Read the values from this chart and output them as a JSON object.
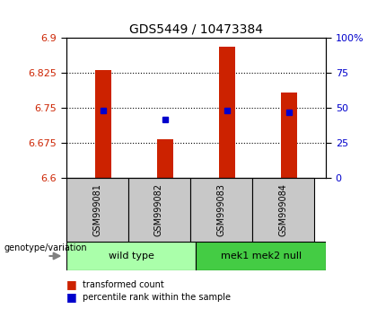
{
  "title": "GDS5449 / 10473384",
  "samples": [
    "GSM999081",
    "GSM999082",
    "GSM999083",
    "GSM999084"
  ],
  "transformed_counts": [
    6.831,
    6.683,
    6.882,
    6.783
  ],
  "percentile_ranks": [
    48,
    42,
    48,
    47
  ],
  "ylim_left": [
    6.6,
    6.9
  ],
  "ylim_right": [
    0,
    100
  ],
  "yticks_left": [
    6.6,
    6.675,
    6.75,
    6.825,
    6.9
  ],
  "yticks_right": [
    0,
    25,
    50,
    75,
    100
  ],
  "grid_yticks": [
    6.675,
    6.75,
    6.825
  ],
  "bar_color": "#CC2200",
  "dot_color": "#0000CC",
  "baseline": 6.6,
  "bg_color": "#FFFFFF",
  "plot_bg": "#FFFFFF",
  "sample_bg": "#C8C8C8",
  "group1_color": "#AAFFAA",
  "group2_color": "#44CC44",
  "group1_label": "wild type",
  "group2_label": "mek1 mek2 null",
  "legend1": "transformed count",
  "legend2": "percentile rank within the sample",
  "genotype_label": "genotype/variation",
  "bar_width": 0.25
}
